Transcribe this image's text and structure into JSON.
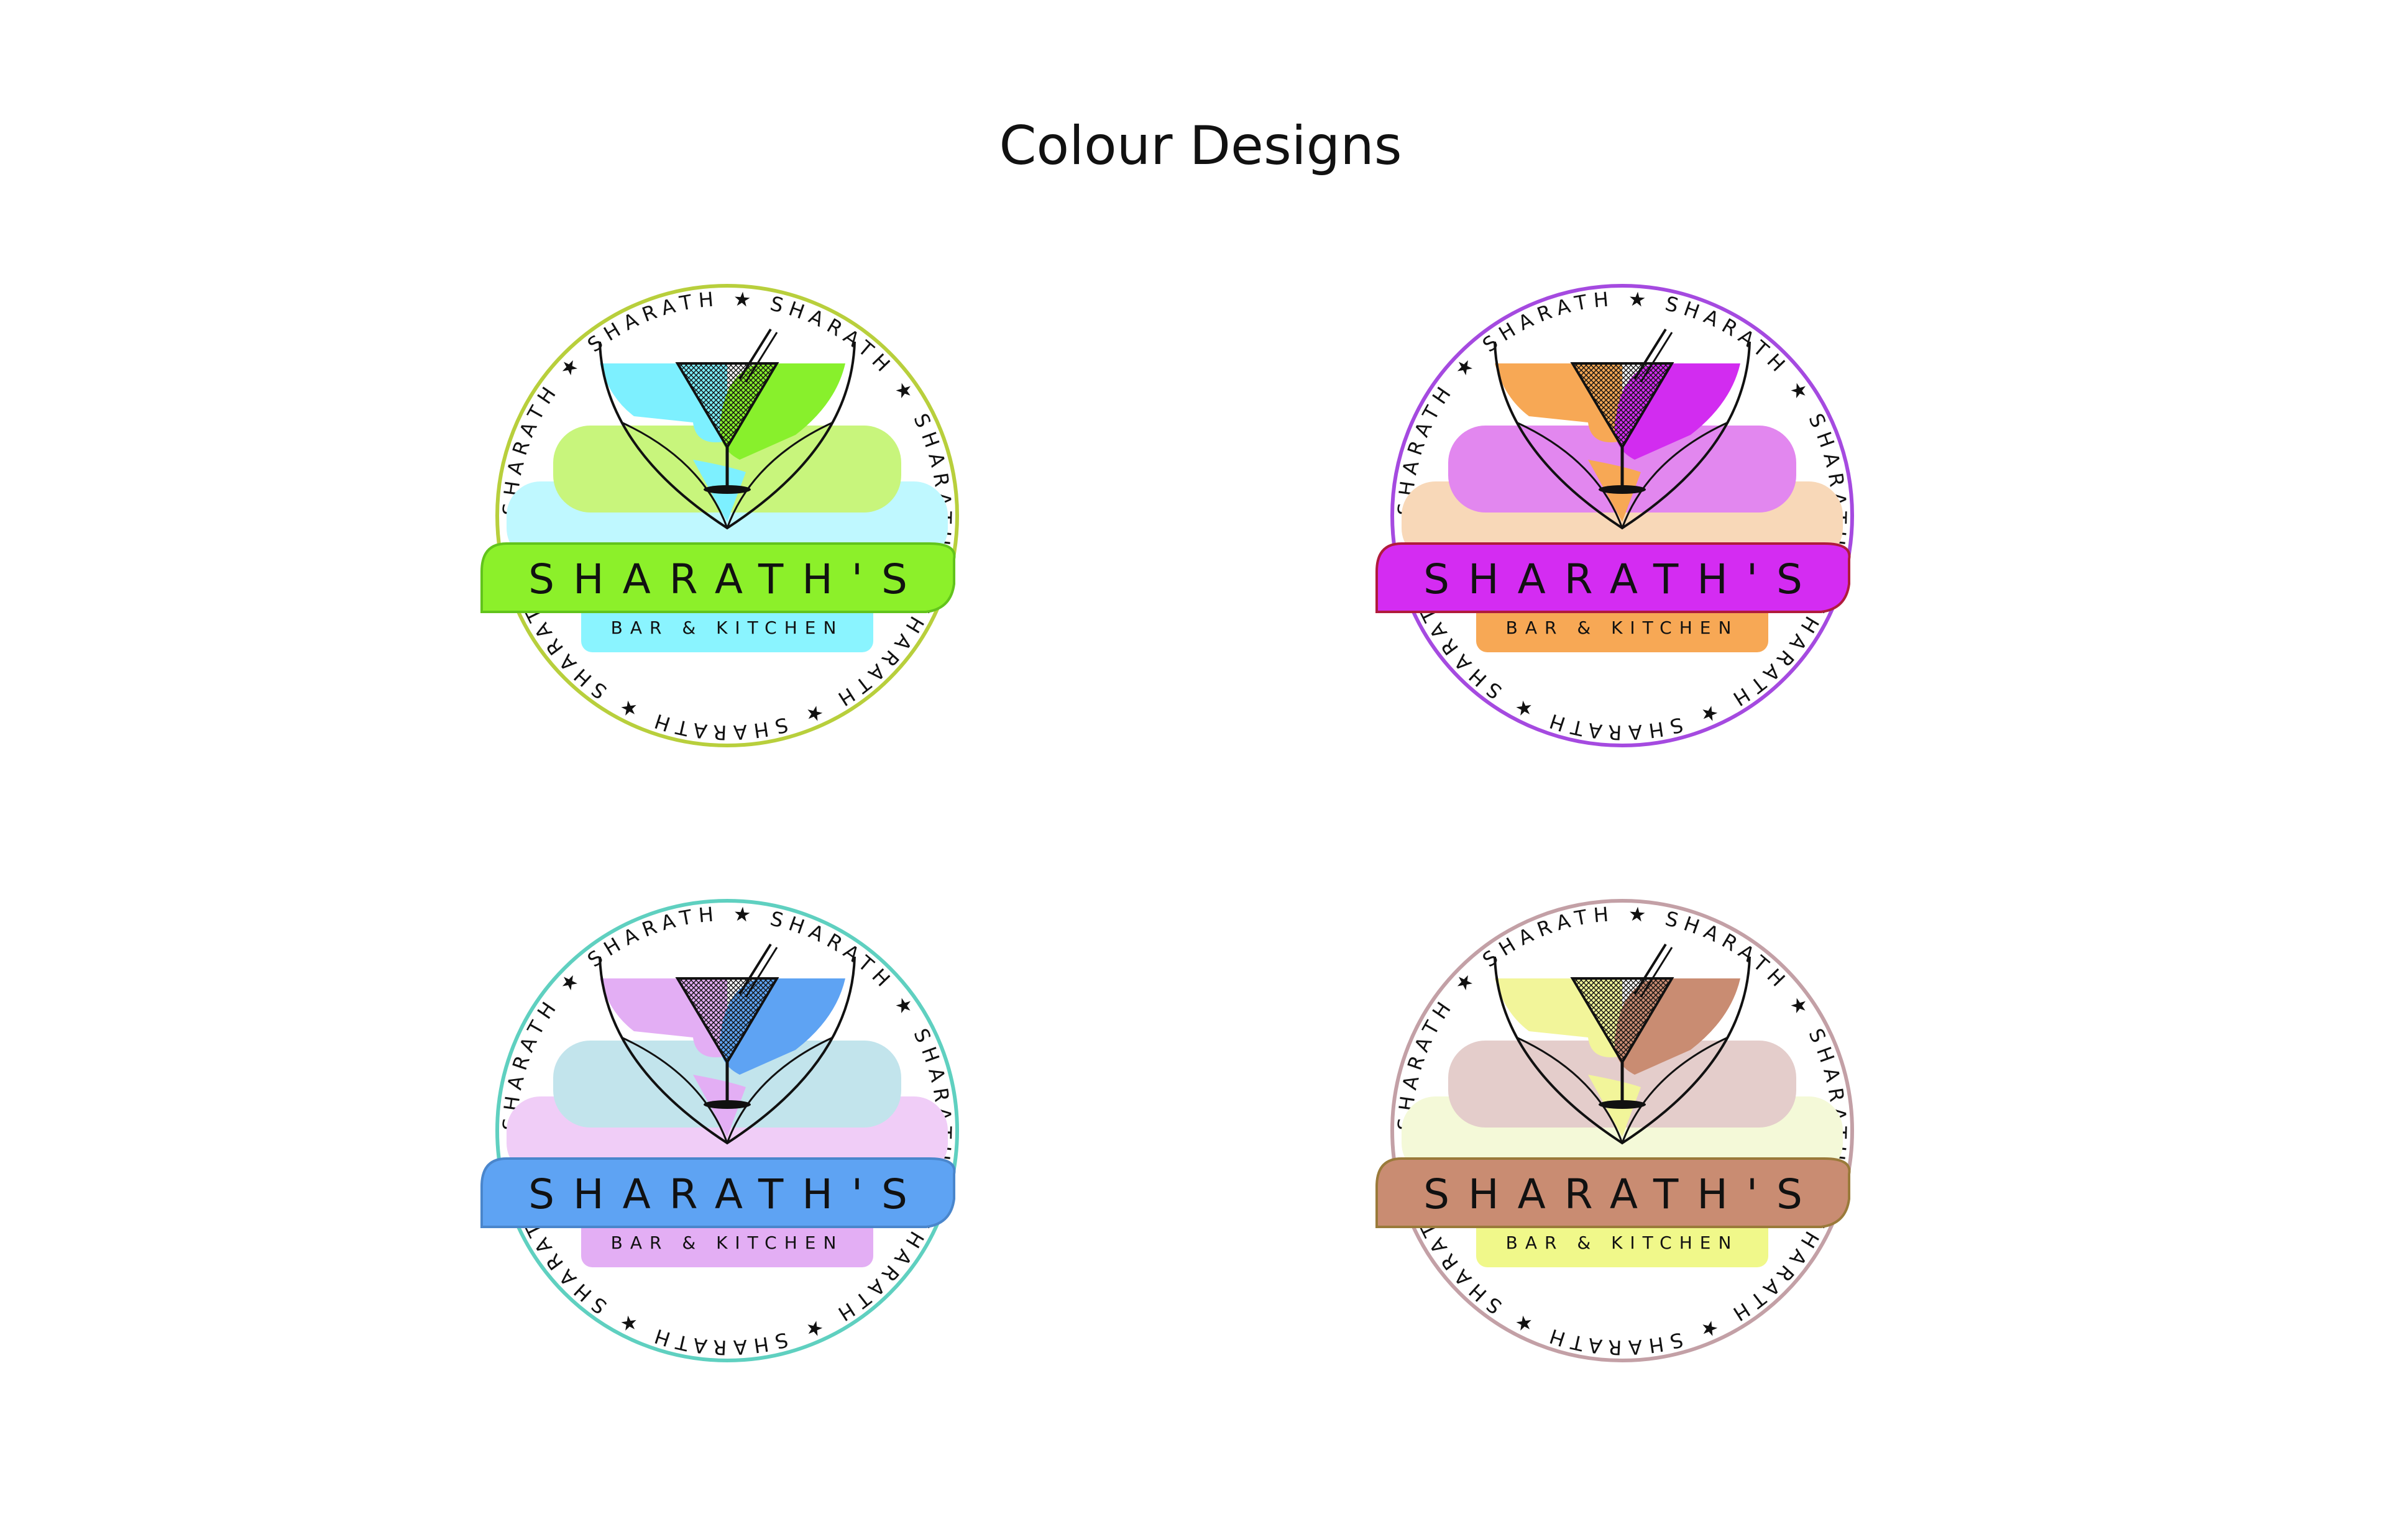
{
  "title": "Colour Designs",
  "logos": [
    {
      "ring_text": "SHARATH ★ SHARATH ★ SHARATH ★ SHARATH ★ SHARATH ★ SHARATH ★ SHARATH ★",
      "name": "SHARATH'S",
      "subtitle": "BAR & KITCHEN",
      "colors": {
        "ring": "#b8cf3c",
        "left_fill": "#7df0ff",
        "right_fill": "#88f02c",
        "upper_tier": "#c8f57c",
        "lower_tier": "#bff8ff",
        "banner": "#8cf02a",
        "banner_stroke": "#62c41c",
        "sub_banner": "#8af4ff"
      }
    },
    {
      "ring_text": "SHARATH ★ SHARATH ★ SHARATH ★ SHARATH ★ SHARATH ★ SHARATH ★ SHARATH ★",
      "name": "SHARATH'S",
      "subtitle": "BAR & KITCHEN",
      "colors": {
        "ring": "#a54ae0",
        "left_fill": "#f7a855",
        "right_fill": "#d22cf0",
        "upper_tier": "#e287ef",
        "lower_tier": "#f8d8b8",
        "banner": "#d42cf2",
        "banner_stroke": "#b01c3c",
        "sub_banner": "#f7a855"
      }
    },
    {
      "ring_text": "SHARATH ★ SHARATH ★ SHARATH ★ SHARATH ★ SHARATH ★ SHARATH ★ SHARATH ★",
      "name": "SHARATH'S",
      "subtitle": "BAR & KITCHEN",
      "colors": {
        "ring": "#5fd0c0",
        "left_fill": "#e3aef4",
        "right_fill": "#5ea3f3",
        "upper_tier": "#c2e4ec",
        "lower_tier": "#f0cdf7",
        "banner": "#5ea3f3",
        "banner_stroke": "#4a86cc",
        "sub_banner": "#e3aef4"
      }
    },
    {
      "ring_text": "SHARATH ★ SHARATH ★ SHARATH ★ SHARATH ★ SHARATH ★ SHARATH ★ SHARATH ★",
      "name": "SHARATH'S",
      "subtitle": "BAR & KITCHEN",
      "colors": {
        "ring": "#c3a0a6",
        "left_fill": "#f2f59a",
        "right_fill": "#c98c72",
        "upper_tier": "#e4cdcb",
        "lower_tier": "#f4f9d8",
        "banner": "#c98c72",
        "banner_stroke": "#9a7a3a",
        "sub_banner": "#f0f88a"
      }
    }
  ]
}
